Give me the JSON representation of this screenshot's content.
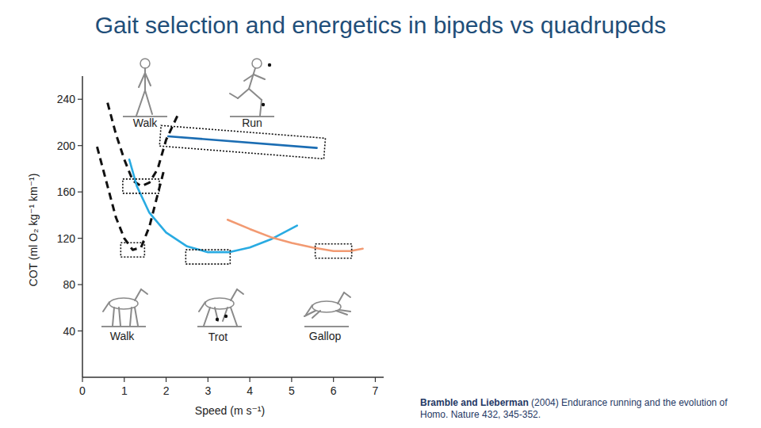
{
  "chart_data": {
    "type": "line",
    "title": "Gait selection and energetics in bipeds vs quadrupeds",
    "x_label": "Speed (m s⁻¹)",
    "y_label": "COT (ml O₂ kg⁻¹ km⁻¹)",
    "xlim": [
      0,
      7.2
    ],
    "xticks": [
      0,
      1,
      2,
      3,
      4,
      5,
      6,
      7
    ],
    "ylim": [
      0,
      260
    ],
    "yticks": [
      40,
      80,
      120,
      160,
      200,
      240
    ],
    "grid": false,
    "series": [
      {
        "name": "Walk",
        "color": "#111111",
        "line_style": "dashed",
        "x": [
          0.6,
          0.8,
          1.0,
          1.2,
          1.4,
          1.6,
          1.8,
          2.0,
          2.3
        ],
        "values": [
          237,
          210,
          188,
          170,
          165,
          168,
          180,
          205,
          228
        ]
      },
      {
        "name": "Run",
        "color": "#1b6db3",
        "line_style": "solid",
        "x": [
          2.05,
          5.6
        ],
        "values": [
          208,
          198
        ]
      },
      {
        "name": "Walk",
        "color": "#111111",
        "line_style": "dashed",
        "x": [
          0.35,
          0.6,
          0.8,
          1.0,
          1.2,
          1.4,
          1.6,
          1.8,
          1.95
        ],
        "values": [
          199,
          165,
          138,
          120,
          110,
          112,
          130,
          158,
          179
        ]
      },
      {
        "name": "Trot",
        "color": "#29abe2",
        "line_style": "solid",
        "x": [
          1.12,
          1.3,
          1.6,
          2.0,
          2.5,
          3.0,
          3.5,
          4.0,
          4.5,
          5.13
        ],
        "values": [
          188,
          165,
          142,
          125,
          113,
          108,
          108,
          112,
          119,
          131
        ]
      },
      {
        "name": "Gallop",
        "color": "#f29a72",
        "line_style": "solid",
        "x": [
          3.47,
          4.0,
          4.5,
          5.0,
          5.5,
          6.0,
          6.4,
          6.7
        ],
        "values": [
          136,
          128,
          121,
          116,
          112,
          109,
          109,
          111
        ]
      }
    ],
    "citation": {
      "authors": "Bramble and Lieberman",
      "reference": "(2004)  Endurance running and the evolution of Homo. Nature 432, 345-352."
    }
  }
}
